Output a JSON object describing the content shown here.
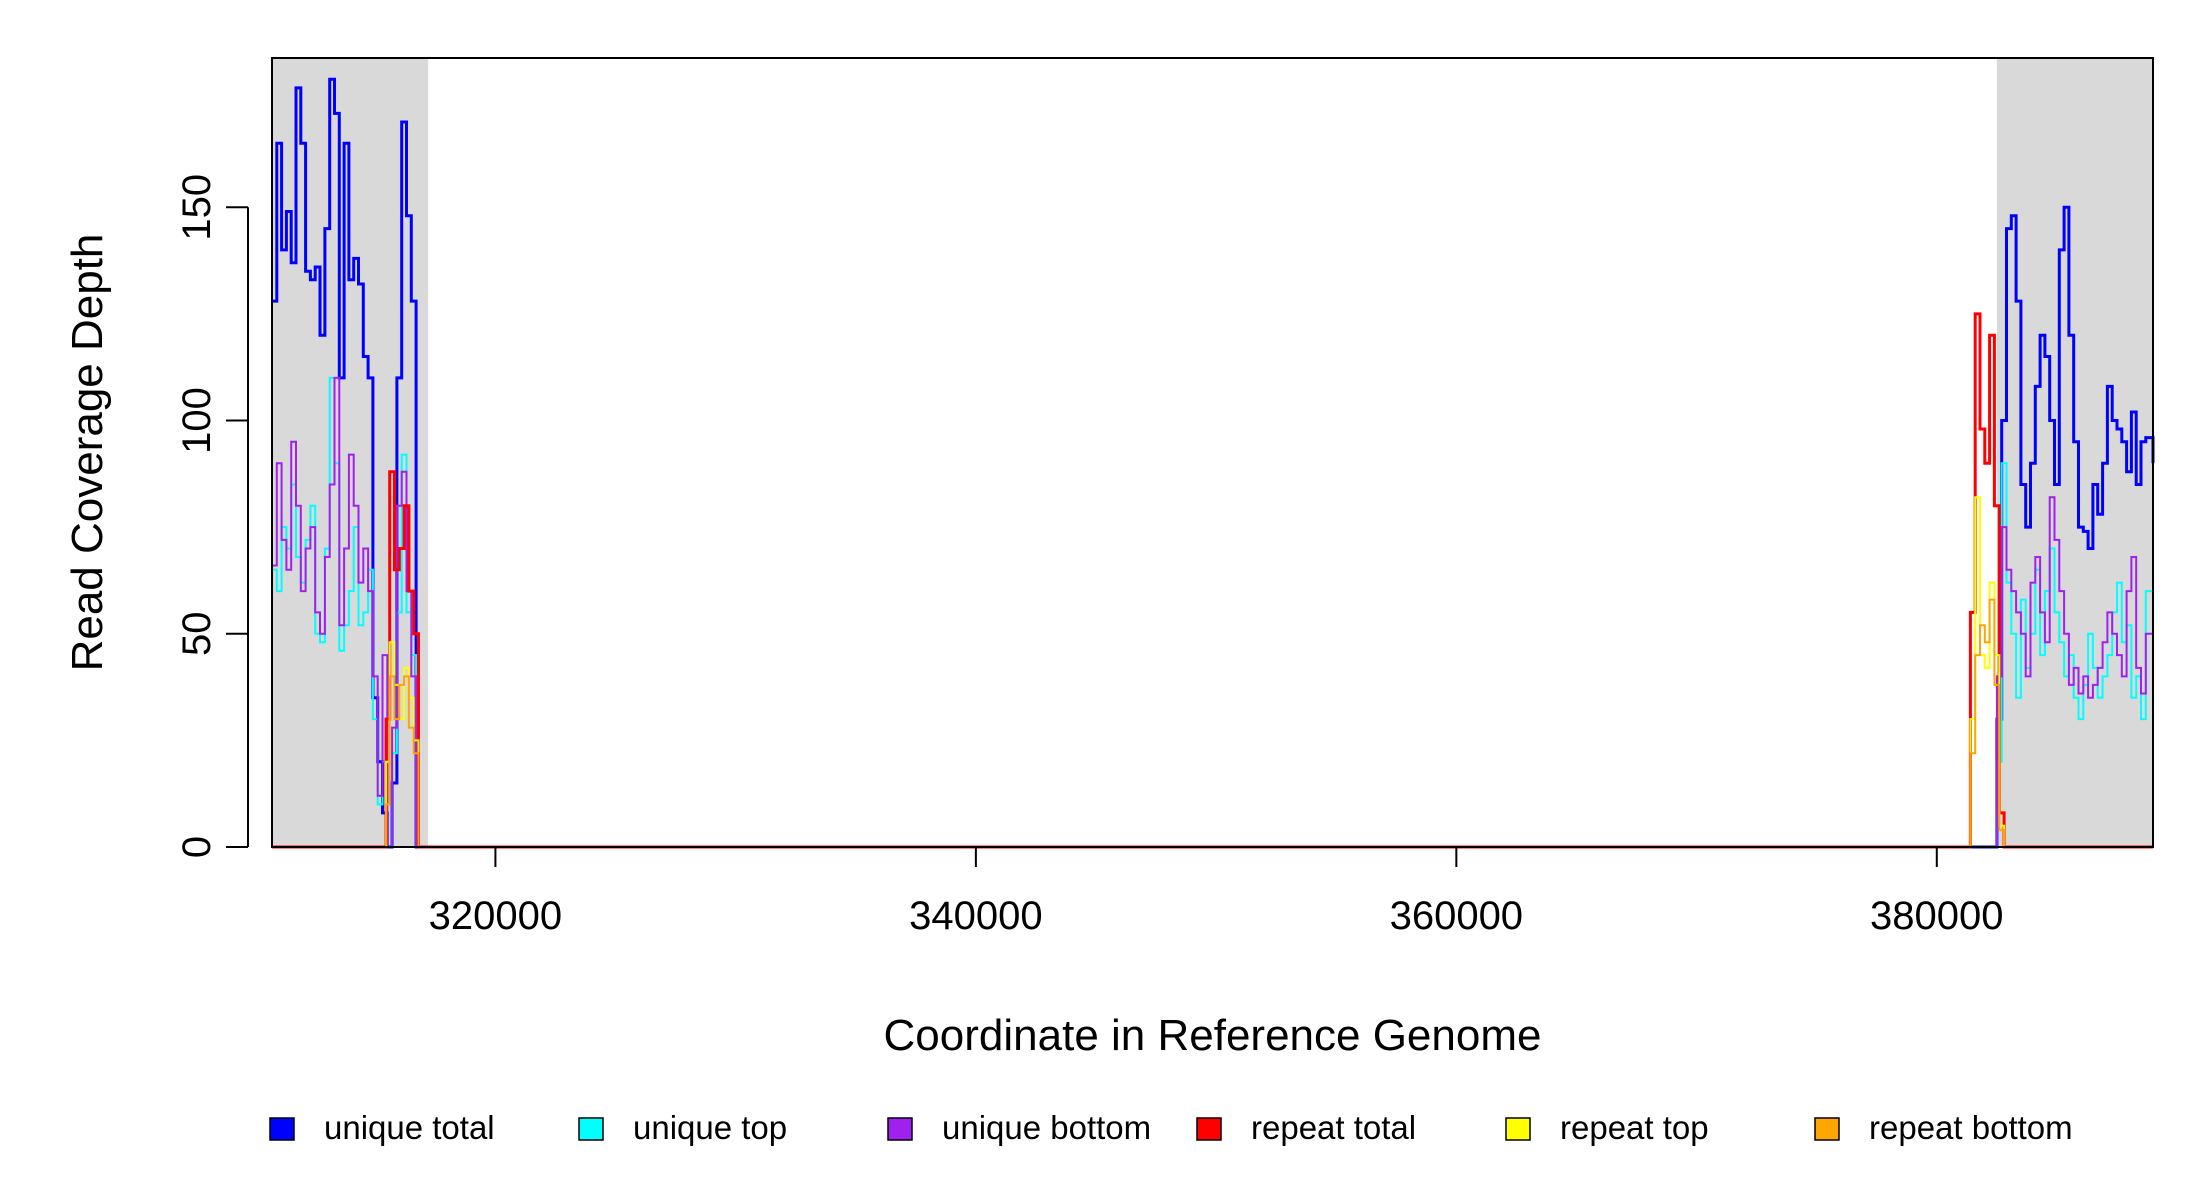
{
  "chart_data": {
    "type": "line",
    "title": "",
    "xlabel": "Coordinate in Reference Genome",
    "ylabel": "Read Coverage Depth",
    "xlim": [
      310700,
      389000
    ],
    "ylim": [
      0,
      185
    ],
    "x_ticks": [
      320000,
      340000,
      360000,
      380000
    ],
    "x_tick_labels": [
      "320000",
      "340000",
      "360000",
      "380000"
    ],
    "y_ticks": [
      0,
      50,
      100,
      150
    ],
    "y_tick_labels": [
      "0",
      "50",
      "100",
      "150"
    ],
    "grid": false,
    "shaded_regions": [
      {
        "x0": 310700,
        "x1": 317200,
        "color": "#d9d9d9"
      },
      {
        "x0": 382500,
        "x1": 389000,
        "color": "#d9d9d9"
      }
    ],
    "legend": {
      "placement": "bottom",
      "entries": [
        "unique total",
        "unique top",
        "unique bottom",
        "repeat total",
        "repeat top",
        "repeat bottom"
      ]
    },
    "series": [
      {
        "name": "unique total",
        "color": "#0000ff",
        "x": [
          310700,
          310900,
          311100,
          311300,
          311500,
          311700,
          311900,
          312100,
          312300,
          312500,
          312700,
          312900,
          313100,
          313300,
          313500,
          313700,
          313900,
          314100,
          314300,
          314500,
          314700,
          314900,
          315100,
          315300,
          315500,
          315700,
          315900,
          316100,
          316300,
          316500,
          316700,
          316900,
          317100,
          317250,
          381500,
          381900,
          382300,
          382500,
          382700,
          382900,
          383100,
          383300,
          383500,
          383700,
          383900,
          384100,
          384300,
          384500,
          384700,
          384900,
          385100,
          385300,
          385500,
          385700,
          385900,
          386100,
          386300,
          386500,
          386700,
          386900,
          387100,
          387300,
          387500,
          387700,
          387900,
          388100,
          388300,
          388500,
          388700,
          389000
        ],
        "y": [
          128,
          165,
          140,
          149,
          137,
          178,
          165,
          135,
          133,
          136,
          120,
          145,
          180,
          172,
          110,
          165,
          133,
          138,
          132,
          115,
          110,
          35,
          20,
          8,
          0,
          15,
          110,
          170,
          148,
          128,
          0,
          0,
          0,
          0,
          0,
          0,
          0,
          30,
          100,
          145,
          148,
          128,
          85,
          75,
          90,
          108,
          120,
          115,
          100,
          85,
          140,
          150,
          120,
          95,
          75,
          74,
          70,
          85,
          78,
          90,
          108,
          100,
          98,
          95,
          88,
          102,
          85,
          95,
          96,
          90
        ]
      },
      {
        "name": "unique top",
        "color": "#00ffff",
        "x": [
          310700,
          310900,
          311100,
          311300,
          311500,
          311700,
          311900,
          312100,
          312300,
          312500,
          312700,
          312900,
          313100,
          313300,
          313500,
          313700,
          313900,
          314100,
          314300,
          314500,
          314700,
          314900,
          315100,
          315300,
          315500,
          315700,
          315900,
          316100,
          316300,
          316500,
          316700,
          316900,
          317100,
          317250,
          381500,
          381900,
          382300,
          382500,
          382700,
          382900,
          383100,
          383300,
          383500,
          383700,
          383900,
          384100,
          384300,
          384500,
          384700,
          384900,
          385100,
          385300,
          385500,
          385700,
          385900,
          386100,
          386300,
          386500,
          386700,
          386900,
          387100,
          387300,
          387500,
          387700,
          387900,
          388100,
          388300,
          388500,
          388700,
          389000
        ],
        "y": [
          65,
          60,
          75,
          70,
          85,
          68,
          62,
          72,
          80,
          50,
          48,
          70,
          110,
          90,
          46,
          52,
          60,
          75,
          52,
          55,
          65,
          30,
          10,
          20,
          0,
          22,
          55,
          92,
          55,
          45,
          0,
          0,
          0,
          0,
          0,
          0,
          0,
          20,
          90,
          62,
          50,
          35,
          58,
          42,
          50,
          65,
          45,
          60,
          70,
          55,
          48,
          40,
          45,
          35,
          30,
          38,
          50,
          42,
          35,
          40,
          45,
          55,
          62,
          48,
          52,
          35,
          40,
          30,
          60,
          28
        ]
      },
      {
        "name": "unique bottom",
        "color": "#a020f0",
        "x": [
          310700,
          310900,
          311100,
          311300,
          311500,
          311700,
          311900,
          312100,
          312300,
          312500,
          312700,
          312900,
          313100,
          313300,
          313500,
          313700,
          313900,
          314100,
          314300,
          314500,
          314700,
          314900,
          315100,
          315300,
          315500,
          315700,
          315900,
          316100,
          316300,
          316500,
          316700,
          316900,
          317100,
          317250,
          381500,
          381900,
          382300,
          382500,
          382700,
          382900,
          383100,
          383300,
          383500,
          383700,
          383900,
          384100,
          384300,
          384500,
          384700,
          384900,
          385100,
          385300,
          385500,
          385700,
          385900,
          386100,
          386300,
          386500,
          386700,
          386900,
          387100,
          387300,
          387500,
          387700,
          387900,
          388100,
          388300,
          388500,
          388700,
          389000
        ],
        "y": [
          66,
          90,
          72,
          65,
          95,
          80,
          60,
          70,
          75,
          55,
          50,
          68,
          85,
          110,
          52,
          70,
          92,
          80,
          62,
          70,
          60,
          40,
          12,
          45,
          0,
          28,
          80,
          88,
          60,
          40,
          0,
          0,
          0,
          0,
          0,
          0,
          0,
          40,
          75,
          65,
          60,
          55,
          50,
          40,
          62,
          68,
          55,
          48,
          82,
          72,
          60,
          50,
          38,
          42,
          36,
          40,
          35,
          38,
          42,
          48,
          55,
          50,
          45,
          40,
          60,
          68,
          42,
          36,
          50,
          38
        ]
      },
      {
        "name": "repeat total",
        "color": "#ff0000",
        "x": [
          310700,
          315300,
          315450,
          315600,
          315800,
          316000,
          316200,
          316400,
          316600,
          316800,
          317000,
          317250,
          381200,
          381400,
          381600,
          381800,
          382000,
          382200,
          382400,
          382600,
          382800,
          389000
        ],
        "y": [
          0,
          0,
          30,
          88,
          65,
          70,
          80,
          60,
          50,
          0,
          0,
          0,
          0,
          55,
          125,
          98,
          90,
          120,
          80,
          8,
          0,
          0
        ]
      },
      {
        "name": "repeat top",
        "color": "#ffff00",
        "x": [
          310700,
          315300,
          315450,
          315600,
          315800,
          316000,
          316200,
          316400,
          316600,
          316800,
          317000,
          317250,
          381200,
          381400,
          381600,
          381800,
          382000,
          382200,
          382400,
          382600,
          382800,
          389000
        ],
        "y": [
          0,
          0,
          20,
          48,
          38,
          30,
          42,
          35,
          25,
          0,
          0,
          0,
          0,
          30,
          82,
          45,
          42,
          62,
          45,
          5,
          0,
          0
        ]
      },
      {
        "name": "repeat bottom",
        "color": "#ffa500",
        "x": [
          310700,
          315300,
          315450,
          315600,
          315800,
          316000,
          316200,
          316400,
          316600,
          316800,
          317000,
          317250,
          381200,
          381400,
          381600,
          381800,
          382000,
          382200,
          382400,
          382600,
          382800,
          389000
        ],
        "y": [
          0,
          0,
          10,
          40,
          30,
          38,
          40,
          28,
          22,
          0,
          0,
          0,
          0,
          22,
          45,
          52,
          48,
          58,
          38,
          4,
          0,
          0
        ]
      }
    ]
  }
}
